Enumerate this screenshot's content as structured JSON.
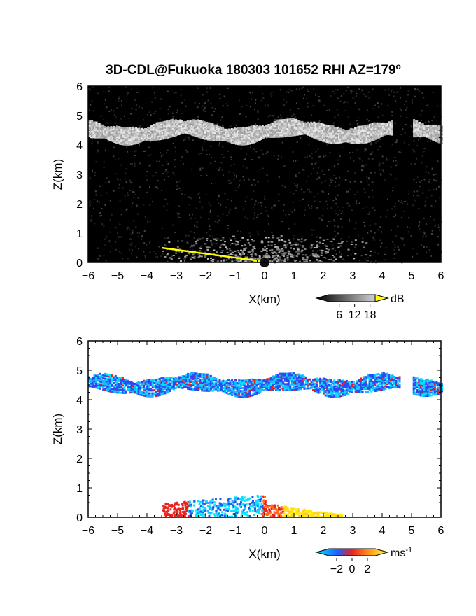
{
  "chart_data": [
    {
      "type": "heatmap",
      "title": "3D-CDL@Fukuoka 180303 101652 RHI AZ=179",
      "title_superscript": "o",
      "xlabel": "X(km)",
      "ylabel": "Z(km)",
      "xlim": [
        -6,
        6
      ],
      "ylim": [
        0,
        6
      ],
      "x_ticks": [
        "-6",
        "-5",
        "-4",
        "-3",
        "-2",
        "-1",
        "0",
        "1",
        "2",
        "3",
        "4",
        "5",
        "6"
      ],
      "y_ticks": [
        "0",
        "1",
        "2",
        "3",
        "4",
        "5",
        "6"
      ],
      "variable_unit": "dB",
      "colorbar_ticks": [
        "6",
        "12",
        "18"
      ],
      "colorscale": "grayscale",
      "features": {
        "cloud_layer_z_km": [
          3.9,
          5.0
        ],
        "surface_echo_x_km": [
          -3.5,
          0.2
        ]
      },
      "colors": {
        "background": "#000000",
        "saturation": "#ffff00"
      }
    },
    {
      "type": "heatmap",
      "xlabel": "X(km)",
      "ylabel": "Z(km)",
      "xlim": [
        -6,
        6
      ],
      "ylim": [
        0,
        6
      ],
      "x_ticks": [
        "-6",
        "-5",
        "-4",
        "-3",
        "-2",
        "-1",
        "0",
        "1",
        "2",
        "3",
        "4",
        "5",
        "6"
      ],
      "y_ticks": [
        "0",
        "1",
        "2",
        "3",
        "4",
        "5",
        "6"
      ],
      "variable_unit": "ms",
      "variable_unit_superscript": "-1",
      "colorbar_ticks": [
        "-2",
        "0",
        "2"
      ],
      "colorscale": "cyan-blue-red-yellow",
      "colorbar_range": [
        -3,
        3
      ],
      "features": {
        "cloud_layer_z_km": [
          3.9,
          5.1
        ],
        "low_level_flow_x_km": [
          -3.5,
          2.6
        ]
      },
      "colors": {
        "negative": "#00e5ff",
        "mid_negative": "#2255ee",
        "zero": "#e8231f",
        "positive": "#ffee00"
      }
    }
  ]
}
